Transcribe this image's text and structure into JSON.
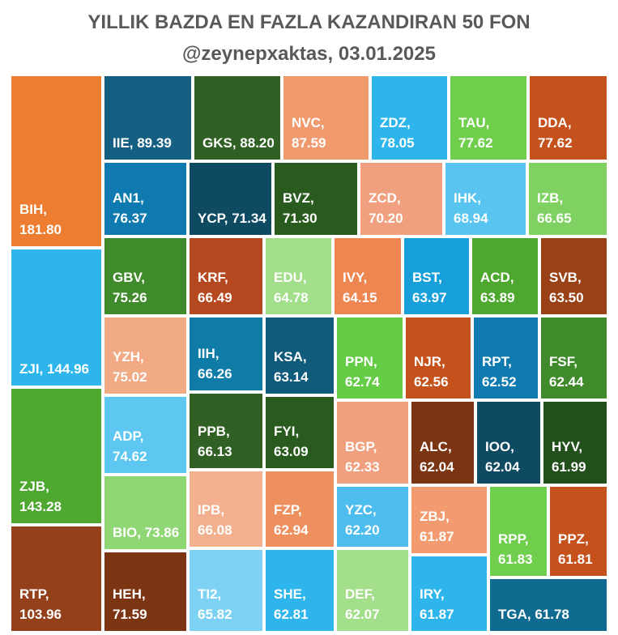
{
  "title": "YILLIK BAZDA EN FAZLA KAZANDIRAN 50 FON",
  "subtitle": "@zeynepxaktas, 03.01.2025",
  "chart_data": {
    "type": "treemap",
    "items": [
      {
        "name": "BIH",
        "value": 181.8,
        "label": "BIH,\n181.80",
        "color": "#ED7D31"
      },
      {
        "name": "ZJI",
        "value": 144.96,
        "label": "ZJI, 144.96",
        "color": "#2EB5EC"
      },
      {
        "name": "ZJB",
        "value": 143.28,
        "label": "ZJB,\n143.28",
        "color": "#4EA72E"
      },
      {
        "name": "RTP",
        "value": 103.96,
        "label": "RTP,\n103.96",
        "color": "#94401B"
      },
      {
        "name": "IIE",
        "value": 89.39,
        "label": "IIE, 89.39",
        "color": "#155F82"
      },
      {
        "name": "GKS",
        "value": 88.2,
        "label": "GKS, 88.20",
        "color": "#306023"
      },
      {
        "name": "NVC",
        "value": 87.59,
        "label": "NVC,\n87.59",
        "color": "#F09A6E"
      },
      {
        "name": "ZDZ",
        "value": 78.05,
        "label": "ZDZ,\n78.05",
        "color": "#2EB5EC"
      },
      {
        "name": "TAU",
        "value": 77.62,
        "label": "TAU,\n77.62",
        "color": "#6FCF4C"
      },
      {
        "name": "DDA",
        "value": 77.62,
        "label": "DDA,\n77.62",
        "color": "#C5511C"
      },
      {
        "name": "AN1",
        "value": 76.37,
        "label": "AN1,\n76.37",
        "color": "#0F7AAF"
      },
      {
        "name": "YCP",
        "value": 71.34,
        "label": "YCP, 71.34",
        "color": "#0E4A62"
      },
      {
        "name": "BVZ",
        "value": 71.3,
        "label": "BVZ,\n71.30",
        "color": "#2A5B1E"
      },
      {
        "name": "ZCD",
        "value": 70.2,
        "label": "ZCD,\n70.20",
        "color": "#F0A07E"
      },
      {
        "name": "IHK",
        "value": 68.94,
        "label": "IHK,\n68.94",
        "color": "#58C4EF"
      },
      {
        "name": "IZB",
        "value": 66.65,
        "label": "IZB,\n66.65",
        "color": "#7FD162"
      },
      {
        "name": "GBV",
        "value": 75.26,
        "label": "GBV,\n75.26",
        "color": "#3F8A2A"
      },
      {
        "name": "KRF",
        "value": 66.49,
        "label": "KRF,\n66.49",
        "color": "#B5481E"
      },
      {
        "name": "EDU",
        "value": 64.78,
        "label": "EDU,\n64.78",
        "color": "#A3DE8A"
      },
      {
        "name": "IVY",
        "value": 64.15,
        "label": "IVY,\n64.15",
        "color": "#EE8652"
      },
      {
        "name": "BST",
        "value": 63.97,
        "label": "BST,\n63.97",
        "color": "#169FD8"
      },
      {
        "name": "ACD",
        "value": 63.89,
        "label": "ACD,\n63.89",
        "color": "#4EA72E"
      },
      {
        "name": "SVB",
        "value": 63.5,
        "label": "SVB,\n63.50",
        "color": "#9A4117"
      },
      {
        "name": "YZH",
        "value": 75.02,
        "label": "YZH,\n75.02",
        "color": "#F2AA85"
      },
      {
        "name": "IIH",
        "value": 66.26,
        "label": "IIH,\n66.26",
        "color": "#0E7CA6"
      },
      {
        "name": "KSA",
        "value": 63.14,
        "label": "KSA,\n63.14",
        "color": "#105B7C"
      },
      {
        "name": "PPN",
        "value": 62.74,
        "label": "PPN,\n62.74",
        "color": "#65CC46"
      },
      {
        "name": "NJR",
        "value": 62.56,
        "label": "NJR,\n62.56",
        "color": "#C5511C"
      },
      {
        "name": "RPT",
        "value": 62.52,
        "label": "RPT,\n62.52",
        "color": "#0F7AAF"
      },
      {
        "name": "FSF",
        "value": 62.44,
        "label": "FSF,\n62.44",
        "color": "#3F8A2A"
      },
      {
        "name": "ADP",
        "value": 74.62,
        "label": "ADP,\n74.62",
        "color": "#5DC7F1"
      },
      {
        "name": "PPB",
        "value": 66.13,
        "label": "PPB,\n66.13",
        "color": "#306023"
      },
      {
        "name": "FYI",
        "value": 63.09,
        "label": "FYI,\n63.09",
        "color": "#2A5B1E"
      },
      {
        "name": "BGP",
        "value": 62.33,
        "label": "BGP,\n62.33",
        "color": "#F0A07E"
      },
      {
        "name": "ALC",
        "value": 62.04,
        "label": "ALC,\n62.04",
        "color": "#7C3512"
      },
      {
        "name": "IOO",
        "value": 62.04,
        "label": "IOO,\n62.04",
        "color": "#0E4A62"
      },
      {
        "name": "HYV",
        "value": 61.99,
        "label": "HYV,\n61.99",
        "color": "#22501A"
      },
      {
        "name": "BIO",
        "value": 73.86,
        "label": "BIO, 73.86",
        "color": "#8FD675"
      },
      {
        "name": "IPB",
        "value": 66.08,
        "label": "IPB,\n66.08",
        "color": "#F3B08E"
      },
      {
        "name": "FZP",
        "value": 62.94,
        "label": "FZP,\n62.94",
        "color": "#EE8F5E"
      },
      {
        "name": "YZC",
        "value": 62.2,
        "label": "YZC,\n62.20",
        "color": "#4DBDEE"
      },
      {
        "name": "ZBJ",
        "value": 61.87,
        "label": "ZBJ,\n61.87",
        "color": "#F29A70"
      },
      {
        "name": "RPP",
        "value": 61.83,
        "label": "RPP,\n61.83",
        "color": "#6FCF4C"
      },
      {
        "name": "PPZ",
        "value": 61.81,
        "label": "PPZ,\n61.81",
        "color": "#C5511C"
      },
      {
        "name": "HEH",
        "value": 71.59,
        "label": "HEH,\n71.59",
        "color": "#7C3512"
      },
      {
        "name": "TI2",
        "value": 65.82,
        "label": "TI2,\n65.82",
        "color": "#7DD2F3"
      },
      {
        "name": "SHE",
        "value": 62.81,
        "label": "SHE,\n62.81",
        "color": "#2EB5EC"
      },
      {
        "name": "DEF",
        "value": 62.07,
        "label": "DEF,\n62.07",
        "color": "#A3DE8A"
      },
      {
        "name": "IRY",
        "value": 61.87,
        "label": "IRY,\n61.87",
        "color": "#2EB5EC"
      },
      {
        "name": "TGA",
        "value": 61.78,
        "label": "TGA, 61.78",
        "color": "#0F6B8F"
      }
    ]
  }
}
